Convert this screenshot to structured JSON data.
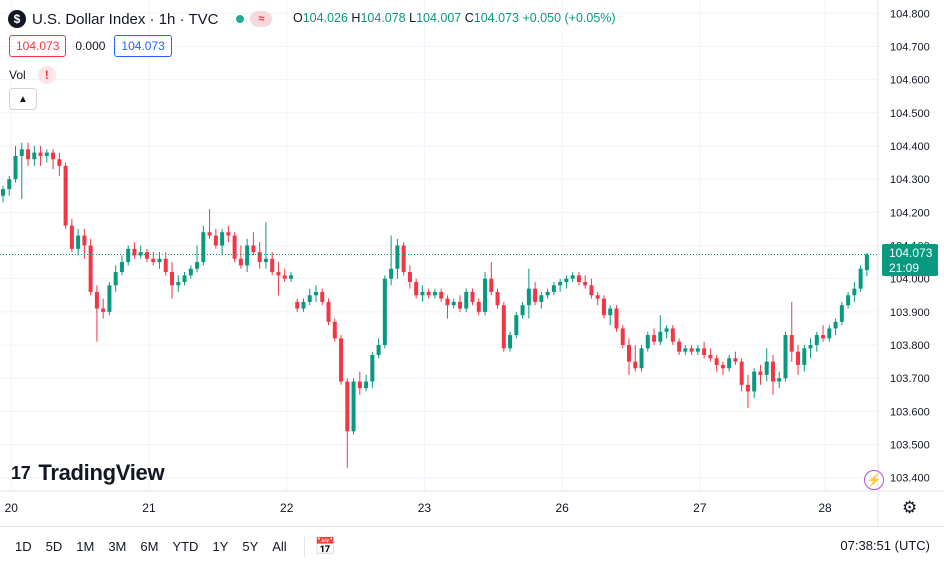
{
  "header": {
    "symbol_badge": "$",
    "title": "U.S. Dollar Index · 1h · TVC",
    "market_status_icon": "live-dot-icon",
    "indicators_icon": "wave-icon",
    "ohlc": {
      "o_label": "O",
      "o_value": "104.026",
      "h_label": "H",
      "h_value": "104.078",
      "l_label": "L",
      "l_value": "104.007",
      "c_label": "C",
      "c_value": "104.073",
      "change": "+0.050 (+0.05%)"
    },
    "sell_price": "104.073",
    "spread": "0.000",
    "buy_price": "104.073",
    "vol_label": "Vol",
    "vol_warning": "!"
  },
  "watermark": "TradingView",
  "last_price_tag": {
    "price": "104.073",
    "countdown": "21:09"
  },
  "bottom_bar": {
    "ranges": [
      "1D",
      "5D",
      "1M",
      "3M",
      "6M",
      "YTD",
      "1Y",
      "5Y",
      "All"
    ],
    "time": "07:38:51 (UTC)"
  },
  "colors": {
    "up": "#089981",
    "down": "#f23645",
    "grid": "#f0f3fa"
  },
  "chart_data": {
    "type": "candlestick",
    "title": "U.S. Dollar Index · 1h · TVC",
    "y_ticks": [
      "104.800",
      "104.700",
      "104.600",
      "104.500",
      "104.400",
      "104.300",
      "104.200",
      "104.100",
      "104.000",
      "103.900",
      "103.800",
      "103.700",
      "103.600",
      "103.500",
      "103.400"
    ],
    "ylim": [
      103.36,
      104.84
    ],
    "x_labels": [
      {
        "label": "20",
        "index": 1
      },
      {
        "label": "21",
        "index": 23
      },
      {
        "label": "22",
        "index": 45
      },
      {
        "label": "23",
        "index": 67
      },
      {
        "label": "26",
        "index": 89
      },
      {
        "label": "27",
        "index": 111
      },
      {
        "label": "28",
        "index": 131
      }
    ],
    "last_price": 104.073,
    "candles": [
      [
        104.25,
        104.28,
        104.23,
        104.27
      ],
      [
        104.27,
        104.31,
        104.25,
        104.3
      ],
      [
        104.3,
        104.4,
        104.29,
        104.37
      ],
      [
        104.37,
        104.41,
        104.24,
        104.39
      ],
      [
        104.39,
        104.41,
        104.34,
        104.36
      ],
      [
        104.36,
        104.4,
        104.34,
        104.38
      ],
      [
        104.38,
        104.4,
        104.34,
        104.37
      ],
      [
        104.37,
        104.39,
        104.35,
        104.38
      ],
      [
        104.38,
        104.39,
        104.33,
        104.36
      ],
      [
        104.36,
        104.38,
        104.31,
        104.34
      ],
      [
        104.34,
        104.35,
        104.15,
        104.16
      ],
      [
        104.16,
        104.18,
        104.08,
        104.09
      ],
      [
        104.09,
        104.15,
        104.07,
        104.13
      ],
      [
        104.13,
        104.15,
        104.06,
        104.1
      ],
      [
        104.1,
        104.12,
        103.95,
        103.96
      ],
      [
        103.96,
        103.98,
        103.81,
        103.91
      ],
      [
        103.91,
        103.94,
        103.88,
        103.9
      ],
      [
        103.9,
        103.99,
        103.89,
        103.98
      ],
      [
        103.98,
        104.04,
        103.96,
        104.02
      ],
      [
        104.02,
        104.07,
        104.01,
        104.05
      ],
      [
        104.05,
        104.1,
        104.04,
        104.09
      ],
      [
        104.09,
        104.11,
        104.06,
        104.07
      ],
      [
        104.07,
        104.1,
        104.06,
        104.08
      ],
      [
        104.08,
        104.09,
        104.05,
        104.06
      ],
      [
        104.06,
        104.08,
        104.04,
        104.05
      ],
      [
        104.05,
        104.08,
        104.03,
        104.06
      ],
      [
        104.06,
        104.08,
        104.01,
        104.02
      ],
      [
        104.02,
        104.05,
        103.94,
        103.98
      ],
      [
        103.98,
        104.01,
        103.96,
        103.99
      ],
      [
        103.99,
        104.02,
        103.98,
        104.01
      ],
      [
        104.01,
        104.04,
        104.0,
        104.03
      ],
      [
        104.03,
        104.1,
        104.02,
        104.05
      ],
      [
        104.05,
        104.16,
        104.04,
        104.14
      ],
      [
        104.14,
        104.21,
        104.12,
        104.13
      ],
      [
        104.13,
        104.15,
        104.09,
        104.1
      ],
      [
        104.1,
        104.15,
        104.07,
        104.14
      ],
      [
        104.14,
        104.16,
        104.11,
        104.13
      ],
      [
        104.13,
        104.14,
        104.05,
        104.06
      ],
      [
        104.06,
        104.1,
        104.03,
        104.04
      ],
      [
        104.04,
        104.12,
        104.02,
        104.1
      ],
      [
        104.1,
        104.14,
        104.07,
        104.08
      ],
      [
        104.08,
        104.11,
        104.03,
        104.05
      ],
      [
        104.05,
        104.17,
        104.03,
        104.06
      ],
      [
        104.06,
        104.08,
        104.01,
        104.02
      ],
      [
        104.02,
        104.05,
        103.95,
        104.01
      ],
      [
        104.01,
        104.03,
        103.99,
        104.0
      ],
      [
        104.0,
        104.02,
        103.99,
        104.01
      ],
      [
        103.93,
        103.94,
        103.9,
        103.91
      ],
      [
        103.91,
        103.94,
        103.9,
        103.93
      ],
      [
        103.93,
        103.97,
        103.92,
        103.95
      ],
      [
        103.95,
        103.98,
        103.93,
        103.96
      ],
      [
        103.96,
        103.97,
        103.92,
        103.93
      ],
      [
        103.93,
        103.94,
        103.86,
        103.87
      ],
      [
        103.87,
        103.88,
        103.81,
        103.82
      ],
      [
        103.82,
        103.83,
        103.68,
        103.69
      ],
      [
        103.69,
        103.7,
        103.43,
        103.54
      ],
      [
        103.54,
        103.7,
        103.53,
        103.69
      ],
      [
        103.69,
        103.72,
        103.65,
        103.67
      ],
      [
        103.67,
        103.71,
        103.66,
        103.69
      ],
      [
        103.69,
        103.78,
        103.67,
        103.77
      ],
      [
        103.77,
        103.82,
        103.76,
        103.8
      ],
      [
        103.8,
        104.01,
        103.79,
        104.0
      ],
      [
        104.0,
        104.13,
        103.98,
        104.03
      ],
      [
        104.03,
        104.12,
        104.0,
        104.1
      ],
      [
        104.1,
        104.11,
        104.01,
        104.02
      ],
      [
        104.02,
        104.04,
        103.97,
        103.99
      ],
      [
        103.99,
        104.0,
        103.94,
        103.95
      ],
      [
        103.95,
        103.98,
        103.93,
        103.96
      ],
      [
        103.96,
        103.97,
        103.94,
        103.95
      ],
      [
        103.95,
        103.97,
        103.94,
        103.96
      ],
      [
        103.96,
        103.97,
        103.93,
        103.94
      ],
      [
        103.94,
        103.95,
        103.88,
        103.92
      ],
      [
        103.92,
        103.94,
        103.91,
        103.93
      ],
      [
        103.93,
        103.95,
        103.9,
        103.91
      ],
      [
        103.91,
        103.97,
        103.9,
        103.96
      ],
      [
        103.96,
        103.97,
        103.92,
        103.93
      ],
      [
        103.93,
        103.94,
        103.89,
        103.9
      ],
      [
        103.9,
        104.02,
        103.89,
        104.0
      ],
      [
        104.0,
        104.05,
        103.95,
        103.96
      ],
      [
        103.96,
        103.97,
        103.91,
        103.92
      ],
      [
        103.92,
        103.93,
        103.78,
        103.79
      ],
      [
        103.79,
        103.84,
        103.78,
        103.83
      ],
      [
        103.83,
        103.9,
        103.82,
        103.89
      ],
      [
        103.89,
        103.93,
        103.88,
        103.92
      ],
      [
        103.92,
        104.03,
        103.88,
        103.97
      ],
      [
        103.97,
        103.99,
        103.92,
        103.93
      ],
      [
        103.93,
        103.96,
        103.91,
        103.95
      ],
      [
        103.95,
        103.97,
        103.94,
        103.96
      ],
      [
        103.96,
        103.99,
        103.95,
        103.98
      ],
      [
        103.98,
        104.0,
        103.96,
        103.99
      ],
      [
        103.99,
        104.01,
        103.97,
        104.0
      ],
      [
        104.0,
        104.02,
        103.99,
        104.01
      ],
      [
        104.01,
        104.02,
        103.98,
        103.99
      ],
      [
        103.99,
        104.01,
        103.97,
        103.98
      ],
      [
        103.98,
        104.0,
        103.94,
        103.95
      ],
      [
        103.95,
        103.96,
        103.92,
        103.94
      ],
      [
        103.94,
        103.95,
        103.88,
        103.89
      ],
      [
        103.89,
        103.92,
        103.86,
        103.91
      ],
      [
        103.91,
        103.92,
        103.84,
        103.85
      ],
      [
        103.85,
        103.86,
        103.79,
        103.8
      ],
      [
        103.8,
        103.82,
        103.71,
        103.75
      ],
      [
        103.75,
        103.8,
        103.72,
        103.73
      ],
      [
        103.73,
        103.8,
        103.72,
        103.79
      ],
      [
        103.79,
        103.84,
        103.78,
        103.83
      ],
      [
        103.83,
        103.85,
        103.8,
        103.81
      ],
      [
        103.81,
        103.89,
        103.8,
        103.84
      ],
      [
        103.84,
        103.86,
        103.82,
        103.85
      ],
      [
        103.85,
        103.86,
        103.8,
        103.81
      ],
      [
        103.81,
        103.82,
        103.77,
        103.78
      ],
      [
        103.78,
        103.8,
        103.77,
        103.79
      ],
      [
        103.79,
        103.8,
        103.77,
        103.78
      ],
      [
        103.78,
        103.8,
        103.77,
        103.79
      ],
      [
        103.79,
        103.81,
        103.76,
        103.77
      ],
      [
        103.77,
        103.79,
        103.75,
        103.76
      ],
      [
        103.76,
        103.77,
        103.72,
        103.74
      ],
      [
        103.74,
        103.75,
        103.71,
        103.73
      ],
      [
        103.73,
        103.77,
        103.72,
        103.76
      ],
      [
        103.76,
        103.78,
        103.74,
        103.75
      ],
      [
        103.75,
        103.76,
        103.66,
        103.68
      ],
      [
        103.68,
        103.71,
        103.61,
        103.66
      ],
      [
        103.66,
        103.73,
        103.64,
        103.72
      ],
      [
        103.72,
        103.74,
        103.68,
        103.71
      ],
      [
        103.71,
        103.79,
        103.69,
        103.75
      ],
      [
        103.75,
        103.77,
        103.65,
        103.69
      ],
      [
        103.69,
        103.72,
        103.67,
        103.7
      ],
      [
        103.7,
        103.84,
        103.69,
        103.83
      ],
      [
        103.83,
        103.93,
        103.75,
        103.78
      ],
      [
        103.78,
        103.8,
        103.71,
        103.74
      ],
      [
        103.74,
        103.8,
        103.72,
        103.79
      ],
      [
        103.79,
        103.82,
        103.76,
        103.8
      ],
      [
        103.8,
        103.84,
        103.78,
        103.83
      ],
      [
        103.83,
        103.86,
        103.81,
        103.82
      ],
      [
        103.82,
        103.86,
        103.81,
        103.85
      ],
      [
        103.85,
        103.88,
        103.83,
        103.87
      ],
      [
        103.87,
        103.93,
        103.86,
        103.92
      ],
      [
        103.92,
        103.96,
        103.91,
        103.95
      ],
      [
        103.95,
        103.99,
        103.93,
        103.97
      ],
      [
        103.97,
        104.04,
        103.96,
        104.03
      ],
      [
        104.026,
        104.078,
        104.007,
        104.073
      ]
    ]
  }
}
